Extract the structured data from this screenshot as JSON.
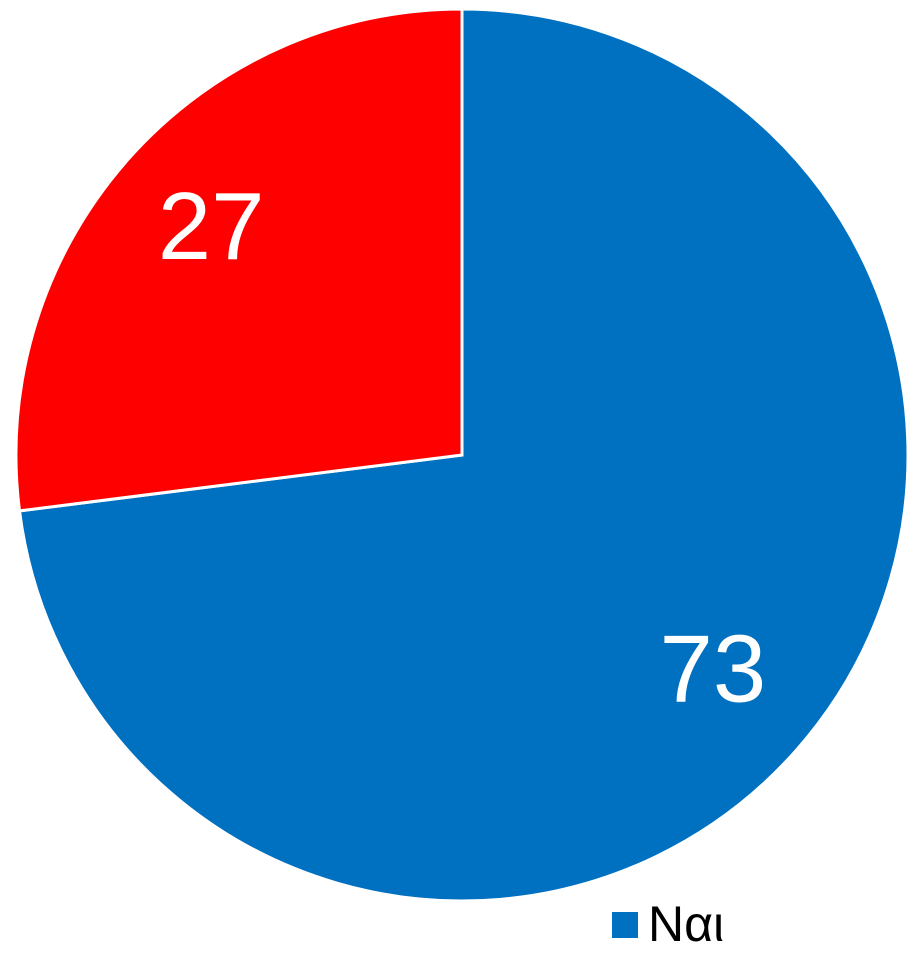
{
  "chart_data": {
    "type": "pie",
    "categories": [
      "Ναι",
      null
    ],
    "values": [
      73,
      27
    ],
    "colors": [
      "#0070c0",
      "#ff0000"
    ]
  }
}
